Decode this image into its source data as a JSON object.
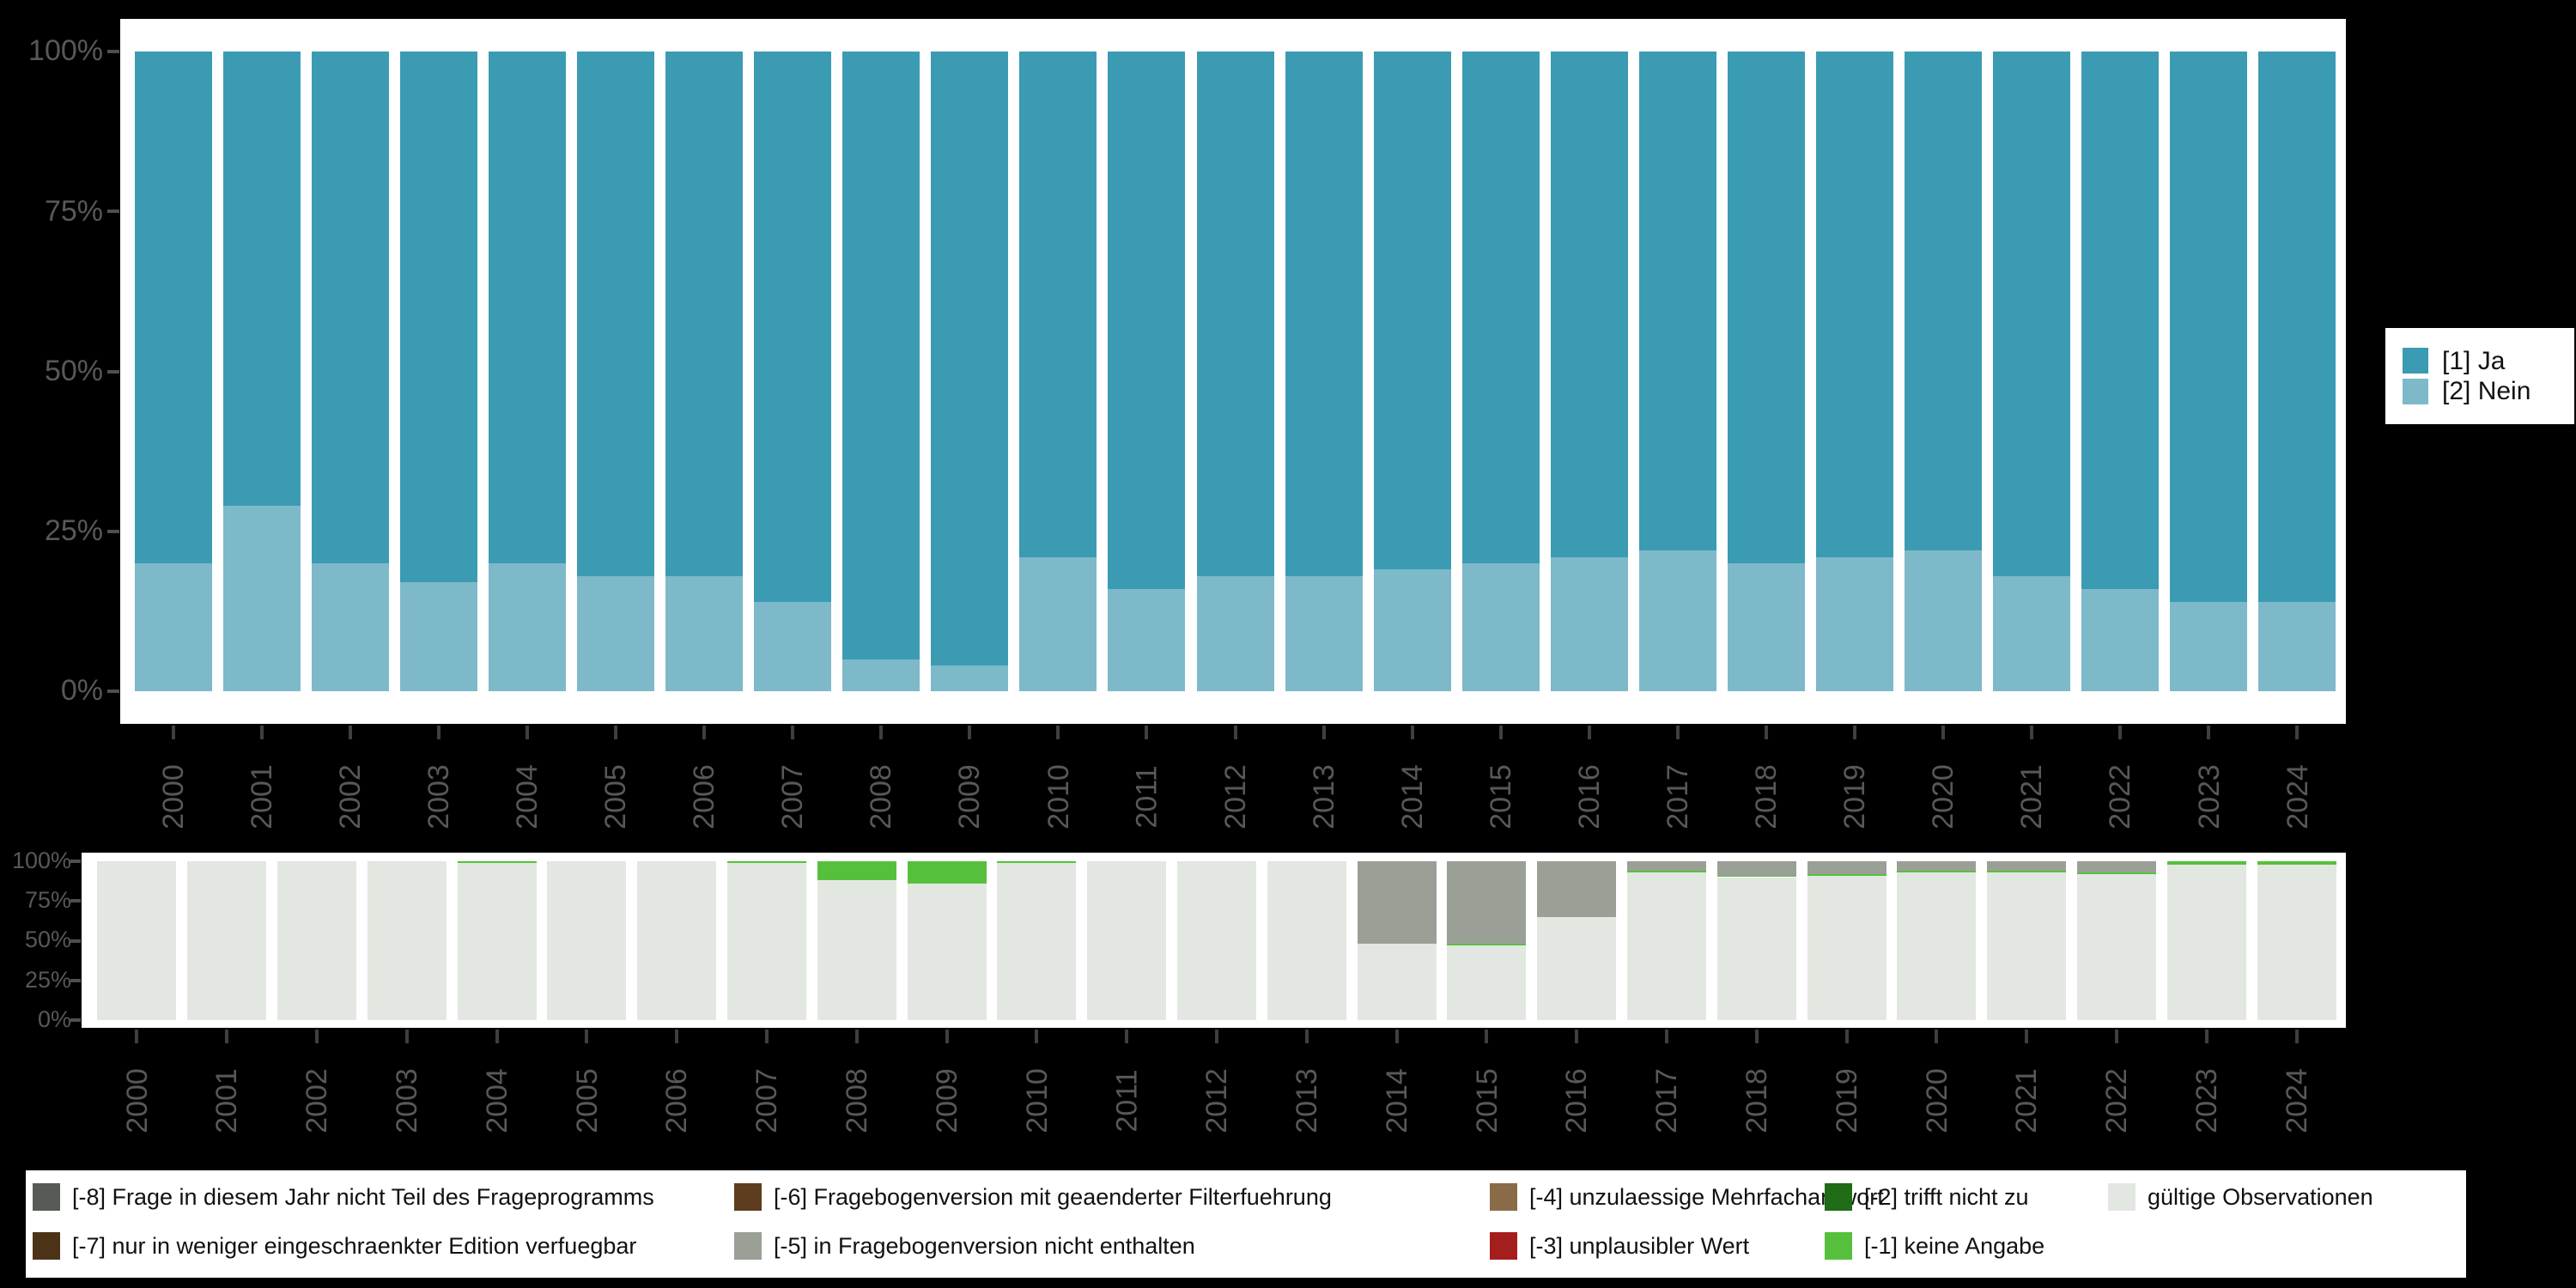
{
  "background_color": "#000000",
  "panel_color": "#ffffff",
  "axis_text_color": "#585858",
  "chart_data": [
    {
      "id": "response-distribution",
      "type": "bar",
      "stacked": true,
      "unit": "percent",
      "ylim": [
        0,
        100
      ],
      "grid": false,
      "y_ticks": [
        "100%",
        "75%",
        "50%",
        "25%",
        "0%"
      ],
      "categories": [
        "2000",
        "2001",
        "2002",
        "2003",
        "2004",
        "2005",
        "2006",
        "2007",
        "2008",
        "2009",
        "2010",
        "2011",
        "2012",
        "2013",
        "2014",
        "2015",
        "2016",
        "2017",
        "2018",
        "2019",
        "2020",
        "2021",
        "2022",
        "2023",
        "2024"
      ],
      "series": [
        {
          "name": "[2] Nein",
          "color": "#7db9c9",
          "values": [
            20,
            29,
            20,
            17,
            20,
            18,
            18,
            14,
            5,
            4,
            21,
            16,
            18,
            18,
            19,
            20,
            21,
            22,
            20,
            21,
            22,
            18,
            16,
            14,
            14
          ]
        },
        {
          "name": "[1] Ja",
          "color": "#3b9bb3",
          "values": [
            80,
            71,
            80,
            83,
            80,
            82,
            82,
            86,
            95,
            96,
            79,
            84,
            82,
            82,
            81,
            80,
            79,
            78,
            80,
            79,
            78,
            82,
            84,
            86,
            86
          ]
        }
      ],
      "legend_position": "right"
    },
    {
      "id": "missing-values",
      "type": "bar",
      "stacked": true,
      "unit": "percent",
      "ylim": [
        0,
        100
      ],
      "grid": false,
      "y_ticks": [
        "100%",
        "75%",
        "50%",
        "25%",
        "0%"
      ],
      "categories": [
        "2000",
        "2001",
        "2002",
        "2003",
        "2004",
        "2005",
        "2006",
        "2007",
        "2008",
        "2009",
        "2010",
        "2011",
        "2012",
        "2013",
        "2014",
        "2015",
        "2016",
        "2017",
        "2018",
        "2019",
        "2020",
        "2021",
        "2022",
        "2023",
        "2024"
      ],
      "series": [
        {
          "name": "gültige Observationen",
          "color": "#e3e7e1",
          "values": [
            100,
            100,
            100,
            100,
            99,
            100,
            100,
            99,
            88,
            86,
            99,
            100,
            100,
            100,
            48,
            47,
            65,
            93,
            90,
            91,
            93,
            93,
            92,
            98,
            98
          ]
        },
        {
          "name": "[-1] keine Angabe",
          "color": "#56c03d",
          "values": [
            0,
            0,
            0,
            0,
            1,
            0,
            0,
            1,
            12,
            14,
            1,
            0,
            0,
            0,
            0,
            1,
            0,
            1,
            1,
            1,
            1,
            1,
            1,
            2,
            2
          ]
        },
        {
          "name": "[-5] in Fragebogenversion nicht enthalten",
          "color": "#9aa096",
          "values": [
            0,
            0,
            0,
            0,
            0,
            0,
            0,
            0,
            0,
            0,
            0,
            0,
            0,
            0,
            52,
            52,
            35,
            6,
            9,
            8,
            6,
            6,
            7,
            0,
            0
          ]
        }
      ],
      "legend_position": "bottom"
    }
  ],
  "legend_top": {
    "items": [
      {
        "label": "[1] Ja",
        "color": "#3b9bb3"
      },
      {
        "label": "[2] Nein",
        "color": "#7db9c9"
      }
    ]
  },
  "legend_bottom": {
    "items": [
      {
        "label": "[-8] Frage in diesem Jahr nicht Teil des Frageprogramms",
        "color": "#565c55",
        "col": 0,
        "row": 0
      },
      {
        "label": "[-7] nur in weniger eingeschraenkter Edition verfuegbar",
        "color": "#4c3317",
        "col": 0,
        "row": 1
      },
      {
        "label": "[-6] Fragebogenversion mit geaenderter Filterfuehrung",
        "color": "#5e3d1e",
        "col": 1,
        "row": 0
      },
      {
        "label": "[-5] in Fragebogenversion nicht enthalten",
        "color": "#9aa096",
        "col": 1,
        "row": 1
      },
      {
        "label": "[-4] unzulaessige Mehrfachantwort",
        "color": "#8a6b48",
        "col": 2,
        "row": 0
      },
      {
        "label": "[-3] unplausibler Wert",
        "color": "#a51e1e",
        "col": 2,
        "row": 1
      },
      {
        "label": "[-2] trifft nicht zu",
        "color": "#1f6b16",
        "col": 3,
        "row": 0
      },
      {
        "label": "[-1] keine Angabe",
        "color": "#56c03d",
        "col": 3,
        "row": 1
      },
      {
        "label": "gültige Observationen",
        "color": "#e3e7e1",
        "col": 4,
        "row": 0
      }
    ]
  }
}
